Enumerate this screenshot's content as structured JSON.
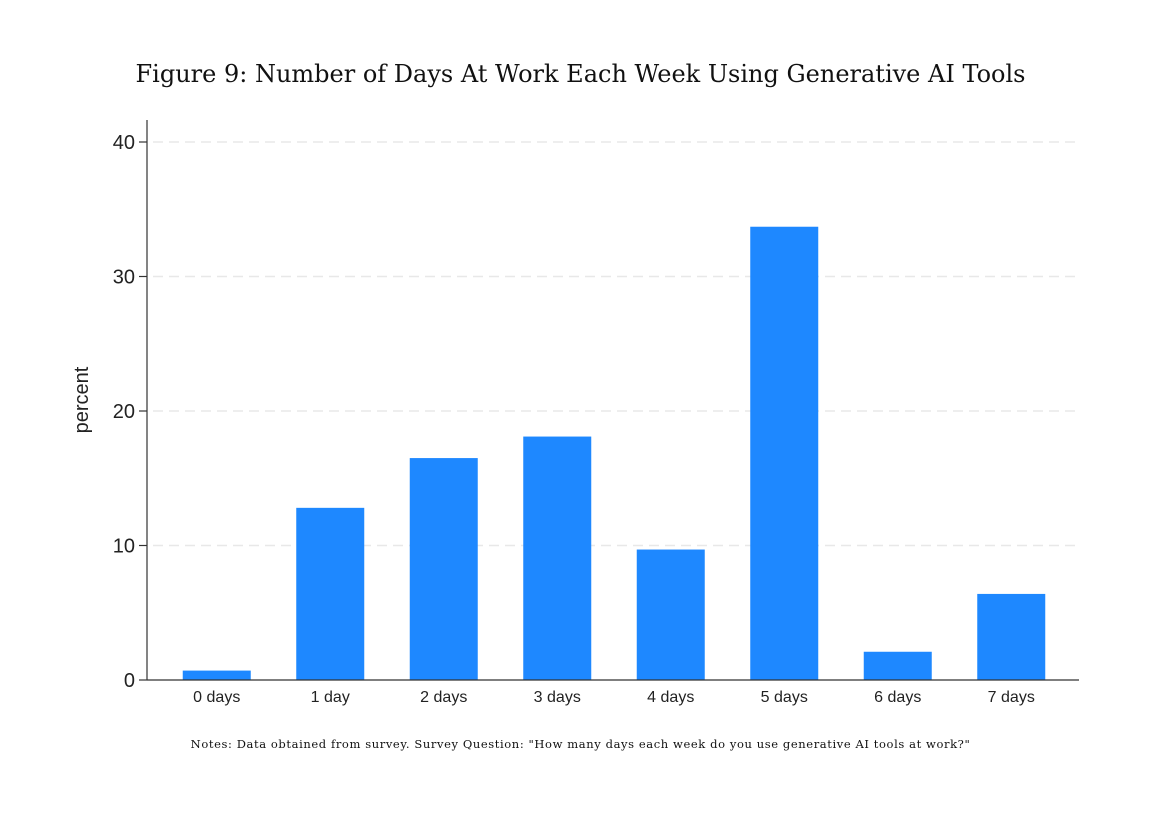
{
  "figure": {
    "title": "Figure 9: Number of Days At Work Each Week Using Generative AI Tools",
    "notes": "Notes: Data obtained from survey. Survey Question: \"How many days each week do you use generative AI tools at work?\""
  },
  "colors": {
    "bar": "#1e88ff",
    "grid": "#e8e8e8",
    "axis": "#333333"
  },
  "chart_data": {
    "type": "bar",
    "title": "",
    "xlabel": "",
    "ylabel": "percent",
    "categories": [
      "0 days",
      "1 day",
      "2 days",
      "3 days",
      "4 days",
      "5 days",
      "6 days",
      "7 days"
    ],
    "values": [
      0.7,
      12.8,
      16.5,
      18.1,
      9.7,
      33.7,
      2.1,
      6.4
    ],
    "ylim": [
      0,
      40
    ],
    "yticks": [
      0,
      10,
      20,
      30,
      40
    ],
    "grid": true,
    "legend": "none"
  }
}
